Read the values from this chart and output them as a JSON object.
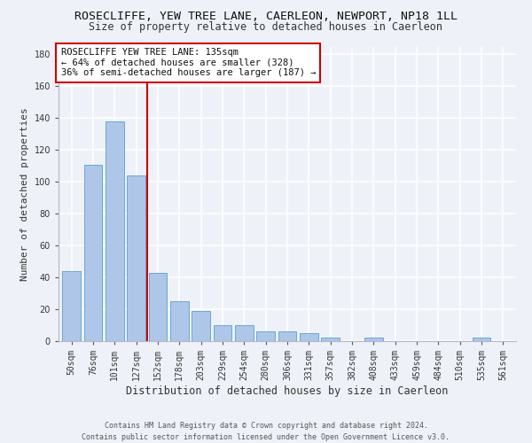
{
  "title": "ROSECLIFFE, YEW TREE LANE, CAERLEON, NEWPORT, NP18 1LL",
  "subtitle": "Size of property relative to detached houses in Caerleon",
  "xlabel": "Distribution of detached houses by size in Caerleon",
  "ylabel": "Number of detached properties",
  "categories": [
    "50sqm",
    "76sqm",
    "101sqm",
    "127sqm",
    "152sqm",
    "178sqm",
    "203sqm",
    "229sqm",
    "254sqm",
    "280sqm",
    "306sqm",
    "331sqm",
    "357sqm",
    "382sqm",
    "408sqm",
    "433sqm",
    "459sqm",
    "484sqm",
    "510sqm",
    "535sqm",
    "561sqm"
  ],
  "values": [
    44,
    111,
    138,
    104,
    43,
    25,
    19,
    10,
    10,
    6,
    6,
    5,
    2,
    0,
    2,
    0,
    0,
    0,
    0,
    2,
    0
  ],
  "bar_color": "#aec6e8",
  "bar_edge_color": "#5a9fd4",
  "vline_x": 3.5,
  "vline_color": "#cc0000",
  "annotation_text": "ROSECLIFFE YEW TREE LANE: 135sqm\n← 64% of detached houses are smaller (328)\n36% of semi-detached houses are larger (187) →",
  "annotation_box_color": "#ffffff",
  "annotation_box_edge": "#cc0000",
  "ylim": [
    0,
    185
  ],
  "yticks": [
    0,
    20,
    40,
    60,
    80,
    100,
    120,
    140,
    160,
    180
  ],
  "footer": "Contains HM Land Registry data © Crown copyright and database right 2024.\nContains public sector information licensed under the Open Government Licence v3.0.",
  "bg_color": "#eef2f8",
  "grid_color": "#ffffff",
  "title_fontsize": 9.5,
  "subtitle_fontsize": 8.5,
  "ylabel_fontsize": 8,
  "xlabel_fontsize": 8.5,
  "tick_fontsize": 7,
  "footer_fontsize": 6,
  "annotation_fontsize": 7.5
}
